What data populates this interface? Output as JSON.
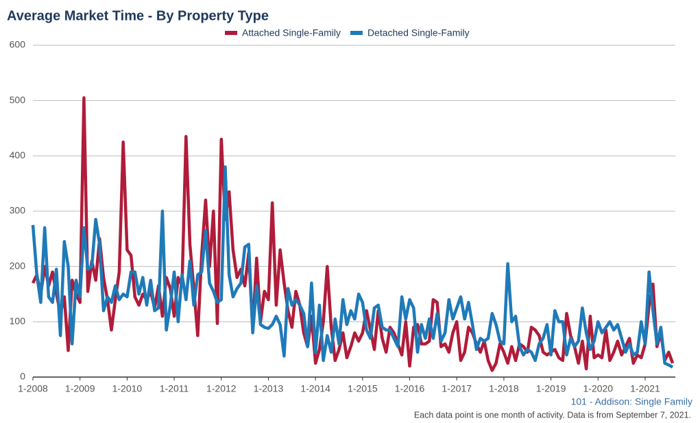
{
  "chart_data": {
    "type": "line",
    "title": "Average Market Time - By Property Type",
    "annotation": "101 - Addison: Single Family",
    "footnote": "Each data point is one month of activity. Data is from September 7, 2021.",
    "categories": [
      "1-2008",
      null,
      null,
      null,
      null,
      null,
      null,
      null,
      null,
      null,
      null,
      null,
      "1-2009",
      null,
      null,
      null,
      null,
      null,
      null,
      null,
      null,
      null,
      null,
      null,
      "1-2010",
      null,
      null,
      null,
      null,
      null,
      null,
      null,
      null,
      null,
      null,
      null,
      "1-2011",
      null,
      null,
      null,
      null,
      null,
      null,
      null,
      null,
      null,
      null,
      null,
      "1-2012",
      null,
      null,
      null,
      null,
      null,
      null,
      null,
      null,
      null,
      null,
      null,
      "1-2013",
      null,
      null,
      null,
      null,
      null,
      null,
      null,
      null,
      null,
      null,
      null,
      "1-2014",
      null,
      null,
      null,
      null,
      null,
      null,
      null,
      null,
      null,
      null,
      null,
      "1-2015",
      null,
      null,
      null,
      null,
      null,
      null,
      null,
      null,
      null,
      null,
      null,
      "1-2016",
      null,
      null,
      null,
      null,
      null,
      null,
      null,
      null,
      null,
      null,
      null,
      "1-2017",
      null,
      null,
      null,
      null,
      null,
      null,
      null,
      null,
      null,
      null,
      null,
      "1-2018",
      null,
      null,
      null,
      null,
      null,
      null,
      null,
      null,
      null,
      null,
      null,
      "1-2019",
      null,
      null,
      null,
      null,
      null,
      null,
      null,
      null,
      null,
      null,
      null,
      "1-2020",
      null,
      null,
      null,
      null,
      null,
      null,
      null,
      null,
      null,
      null,
      null,
      "1-2021",
      null,
      null,
      null,
      null,
      null,
      null,
      null
    ],
    "series": [
      {
        "name": "Attached Single-Family",
        "color": "#b01c3a",
        "values": [
          170,
          185,
          150,
          200,
          165,
          190,
          150,
          115,
          145,
          48,
          175,
          150,
          135,
          505,
          155,
          210,
          175,
          250,
          180,
          140,
          85,
          140,
          190,
          425,
          230,
          220,
          145,
          130,
          150,
          140,
          155,
          125,
          165,
          110,
          180,
          160,
          110,
          180,
          165,
          435,
          240,
          160,
          75,
          220,
          320,
          200,
          300,
          97,
          430,
          285,
          335,
          230,
          180,
          195,
          165,
          225,
          85,
          215,
          100,
          155,
          140,
          315,
          130,
          230,
          170,
          120,
          90,
          155,
          130,
          80,
          55,
          110,
          25,
          50,
          100,
          200,
          90,
          30,
          50,
          80,
          35,
          55,
          80,
          65,
          80,
          120,
          85,
          50,
          120,
          70,
          45,
          90,
          80,
          60,
          40,
          100,
          20,
          90,
          95,
          60,
          60,
          65,
          140,
          135,
          55,
          60,
          45,
          80,
          100,
          30,
          45,
          90,
          80,
          60,
          45,
          65,
          30,
          12,
          25,
          60,
          45,
          25,
          55,
          30,
          60,
          55,
          45,
          90,
          85,
          75,
          45,
          40,
          45,
          50,
          35,
          30,
          115,
          75,
          55,
          25,
          65,
          15,
          110,
          35,
          40,
          35,
          85,
          30,
          45,
          65,
          40,
          55,
          70,
          25,
          40,
          35,
          60,
          130,
          168,
          55,
          80,
          30,
          45,
          25
        ]
      },
      {
        "name": "Detached Single-Family",
        "color": "#1f7ab8",
        "values": [
          275,
          185,
          135,
          270,
          145,
          135,
          195,
          75,
          245,
          200,
          60,
          175,
          145,
          270,
          195,
          200,
          285,
          240,
          120,
          145,
          135,
          165,
          140,
          150,
          145,
          190,
          190,
          150,
          180,
          130,
          175,
          120,
          125,
          300,
          85,
          130,
          190,
          100,
          185,
          140,
          210,
          130,
          185,
          190,
          265,
          170,
          155,
          135,
          140,
          380,
          185,
          145,
          160,
          170,
          235,
          240,
          80,
          165,
          95,
          90,
          88,
          95,
          110,
          95,
          38,
          160,
          130,
          140,
          130,
          115,
          55,
          170,
          45,
          130,
          30,
          75,
          45,
          105,
          60,
          140,
          95,
          120,
          105,
          150,
          135,
          85,
          70,
          125,
          130,
          90,
          85,
          85,
          70,
          55,
          145,
          105,
          140,
          125,
          45,
          95,
          70,
          105,
          70,
          115,
          65,
          80,
          140,
          105,
          125,
          145,
          105,
          135,
          95,
          50,
          70,
          65,
          70,
          115,
          95,
          65,
          60,
          205,
          100,
          110,
          55,
          40,
          50,
          45,
          30,
          60,
          70,
          95,
          40,
          120,
          100,
          100,
          40,
          70,
          55,
          65,
          125,
          80,
          50,
          65,
          100,
          80,
          90,
          100,
          85,
          95,
          70,
          45,
          60,
          40,
          45,
          100,
          60,
          190,
          120,
          60,
          90,
          25,
          22,
          18
        ]
      }
    ],
    "ylim": [
      0,
      600
    ],
    "yticks": [
      0,
      100,
      200,
      300,
      400,
      500,
      600
    ],
    "grid": true
  }
}
